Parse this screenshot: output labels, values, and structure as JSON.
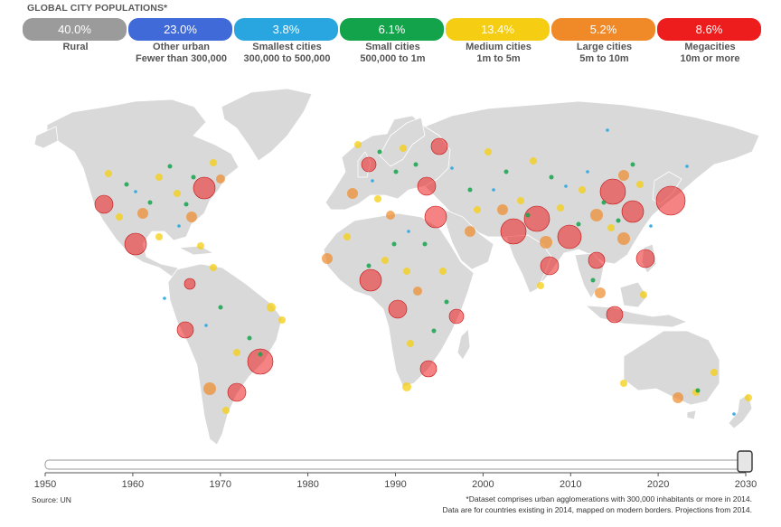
{
  "title": "GLOBAL CITY POPULATIONS*",
  "categories": [
    {
      "pct": "40.0%",
      "label": "Rural",
      "color": "#9b9b9b"
    },
    {
      "pct": "23.0%",
      "label": "Other urban\nFewer than 300,000",
      "color": "#3f6ad8"
    },
    {
      "pct": "3.8%",
      "label": "Smallest cities\n300,000 to 500,000",
      "color": "#29a6e0"
    },
    {
      "pct": "6.1%",
      "label": "Small cities\n500,000 to 1m",
      "color": "#13a34a"
    },
    {
      "pct": "13.4%",
      "label": "Medium cities\n1m to 5m",
      "color": "#f5cd12"
    },
    {
      "pct": "5.2%",
      "label": "Large cities\n5m to 10m",
      "color": "#f08a28"
    },
    {
      "pct": "8.6%",
      "label": "Megacities\n10m or more",
      "color": "#ee1d1d"
    }
  ],
  "timeline": {
    "years": [
      "1950",
      "1960",
      "1970",
      "1980",
      "1990",
      "2000",
      "2010",
      "2020",
      "2030"
    ],
    "current_year": 2030
  },
  "source": "Source: UN",
  "footnote": "*Dataset comprises urban agglomerations with 300,000 inhabitants or more in 2014.\nData are for countries existing in 2014, mapped on modern borders. Projections from 2014.",
  "map_colors": {
    "land": "#d9d9d9",
    "border": "#ffffff"
  }
}
